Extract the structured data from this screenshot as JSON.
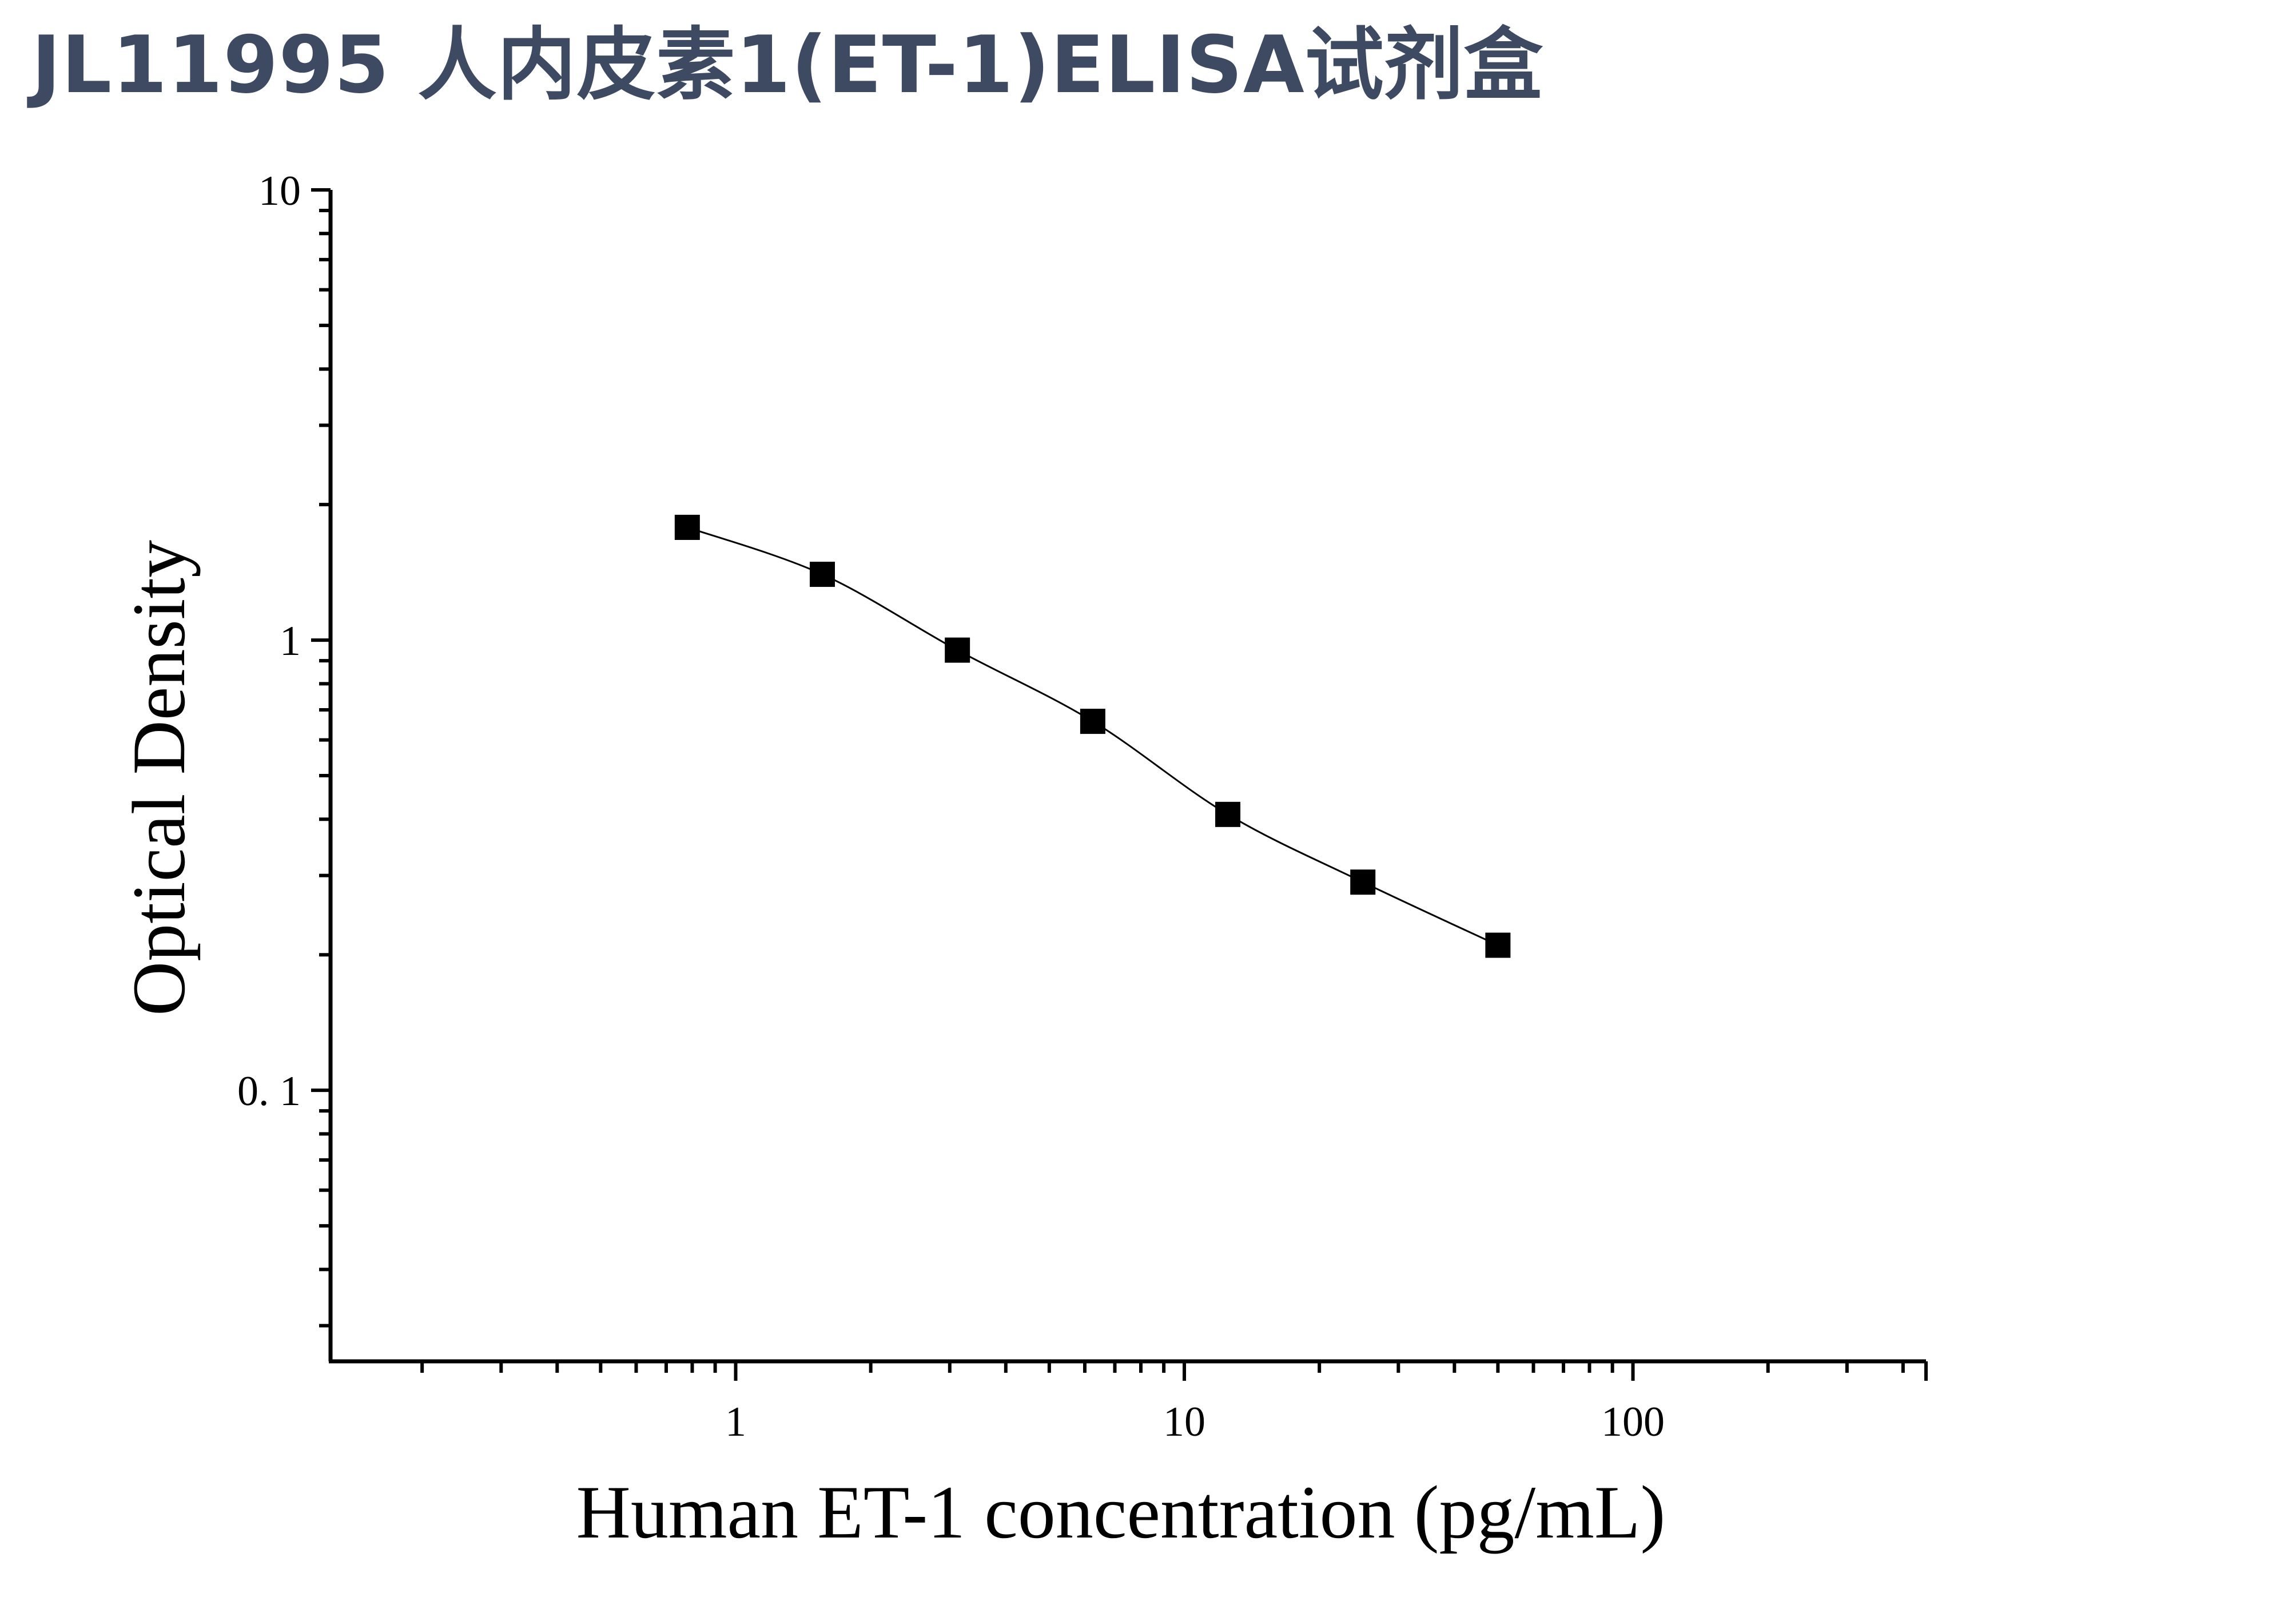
{
  "page": {
    "title": "JL11995 人内皮素1(ET-1)ELISA试剂盒"
  },
  "chart_data": {
    "type": "scatter",
    "title": "",
    "xlabel": "Human ET-1 concentration (pg/mL)",
    "ylabel": "Optical Density",
    "x_scale": "log",
    "y_scale": "log",
    "xlim": [
      0.125,
      450
    ],
    "ylim": [
      0.025,
      10
    ],
    "x_ticks": [
      {
        "value": 1,
        "label": "1"
      },
      {
        "value": 10,
        "label": "10"
      },
      {
        "value": 100,
        "label": "100"
      }
    ],
    "y_ticks": [
      {
        "value": 0.1,
        "label": "0. 1"
      },
      {
        "value": 1,
        "label": "1"
      },
      {
        "value": 10,
        "label": "10"
      }
    ],
    "grid": false,
    "legend": "none",
    "series": [
      {
        "marker": "square",
        "color": "#000000",
        "fit_line": true,
        "x": [
          0.78,
          1.56,
          3.12,
          6.25,
          12.5,
          25,
          50
        ],
        "y": [
          1.78,
          1.4,
          0.95,
          0.66,
          0.41,
          0.29,
          0.21
        ]
      }
    ]
  }
}
